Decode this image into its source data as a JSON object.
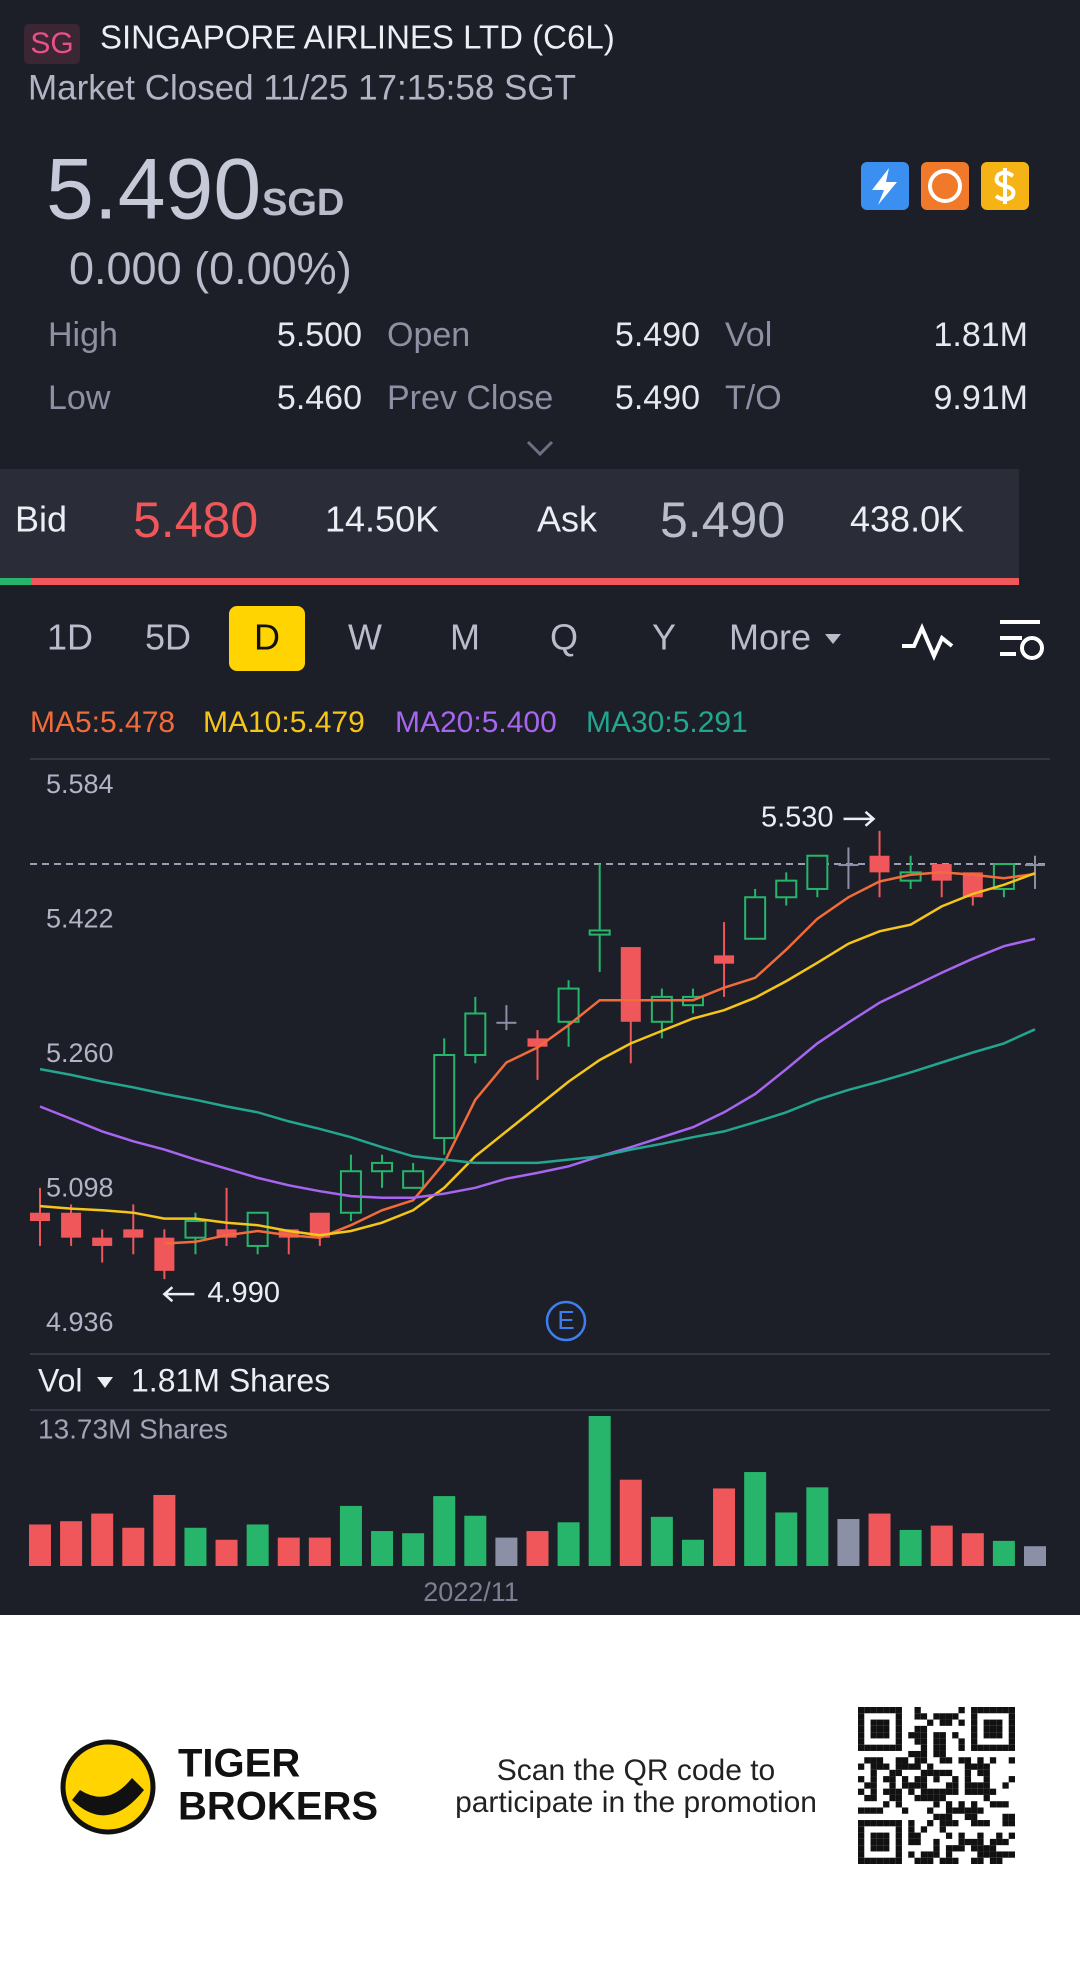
{
  "header": {
    "exchange_badge": "SG",
    "title": "SINGAPORE AIRLINES LTD (C6L)",
    "status": "Market Closed 11/25 17:15:58 SGT"
  },
  "quote": {
    "price": "5.490",
    "currency": "SGD",
    "change": "0.000 (0.00%)"
  },
  "stats": [
    [
      {
        "label": "High",
        "value": "5.500"
      },
      {
        "label": "Open",
        "value": "5.490"
      },
      {
        "label": "Vol",
        "value": "1.81M"
      }
    ],
    [
      {
        "label": "Low",
        "value": "5.460"
      },
      {
        "label": "Prev Close",
        "value": "5.490"
      },
      {
        "label": "T/O",
        "value": "9.91M"
      }
    ]
  ],
  "order_book": {
    "bid_label": "Bid",
    "bid_price": "5.480",
    "bid_size": "14.50K",
    "ask_label": "Ask",
    "ask_price": "5.490",
    "ask_size": "438.0K"
  },
  "periods": [
    "1D",
    "5D",
    "D",
    "W",
    "M",
    "Q",
    "Y",
    "More"
  ],
  "selected_period": 2,
  "chart": {
    "type": "candlestick",
    "ylim": [
      4.936,
      5.584
    ],
    "yticks": [
      5.584,
      5.422,
      {
        "value": 5.26,
        "label": "5.260"
      },
      5.098,
      4.936
    ],
    "colors": {
      "up": "#26b56a",
      "down": "#f0575a",
      "flat": "#8c90a6"
    },
    "candles": {
      "open": [
        5.07,
        5.07,
        5.04,
        5.05,
        5.04,
        5.04,
        5.05,
        5.03,
        5.05,
        5.07,
        5.07,
        5.12,
        5.1,
        5.16,
        5.26,
        5.3,
        5.28,
        5.3,
        5.405,
        5.39,
        5.3,
        5.32,
        5.38,
        5.4,
        5.45,
        5.46,
        5.49,
        5.5,
        5.47,
        5.49,
        5.48,
        5.46,
        5.49
      ],
      "high": [
        5.1,
        5.08,
        5.05,
        5.08,
        5.05,
        5.07,
        5.1,
        5.07,
        5.05,
        5.07,
        5.14,
        5.14,
        5.13,
        5.28,
        5.33,
        5.32,
        5.29,
        5.35,
        5.49,
        5.39,
        5.34,
        5.34,
        5.42,
        5.46,
        5.48,
        5.5,
        5.51,
        5.53,
        5.5,
        5.49,
        5.48,
        5.49,
        5.5
      ],
      "low": [
        5.03,
        5.03,
        5.01,
        5.02,
        4.99,
        5.02,
        5.03,
        5.02,
        5.02,
        5.03,
        5.06,
        5.1,
        5.1,
        5.14,
        5.25,
        5.29,
        5.23,
        5.27,
        5.36,
        5.25,
        5.28,
        5.31,
        5.33,
        5.4,
        5.44,
        5.45,
        5.46,
        5.45,
        5.46,
        5.45,
        5.44,
        5.45,
        5.46
      ],
      "close": [
        5.06,
        5.04,
        5.03,
        5.04,
        5.0,
        5.06,
        5.04,
        5.07,
        5.04,
        5.04,
        5.12,
        5.13,
        5.12,
        5.26,
        5.31,
        5.3,
        5.27,
        5.34,
        5.41,
        5.3,
        5.33,
        5.33,
        5.37,
        5.45,
        5.47,
        5.5,
        5.49,
        5.48,
        5.48,
        5.47,
        5.45,
        5.49,
        5.49
      ]
    },
    "ma_series": [
      {
        "legend": "MA5:5.478",
        "color": "#f26b3a",
        "values": [
          null,
          null,
          null,
          null,
          5.033,
          5.035,
          5.043,
          5.048,
          5.043,
          5.04,
          5.055,
          5.073,
          5.085,
          5.13,
          5.206,
          5.251,
          5.269,
          5.296,
          5.326,
          5.326,
          5.326,
          5.326,
          5.341,
          5.353,
          5.387,
          5.424,
          5.45,
          5.469,
          5.477,
          5.48,
          5.477,
          5.473,
          5.478
        ]
      },
      {
        "legend": "MA10:5.479",
        "color": "#f5c518",
        "values": [
          5.078,
          5.075,
          5.073,
          5.07,
          5.063,
          5.063,
          5.058,
          5.055,
          5.048,
          5.043,
          5.048,
          5.058,
          5.073,
          5.1,
          5.138,
          5.168,
          5.198,
          5.228,
          5.254,
          5.274,
          5.289,
          5.304,
          5.314,
          5.329,
          5.349,
          5.371,
          5.394,
          5.409,
          5.417,
          5.439,
          5.454,
          5.465,
          5.479
        ]
      },
      {
        "legend": "MA20:5.400",
        "color": "#a765f0",
        "values": [
          5.198,
          5.183,
          5.168,
          5.156,
          5.146,
          5.134,
          5.123,
          5.112,
          5.103,
          5.096,
          5.09,
          5.088,
          5.088,
          5.093,
          5.1,
          5.111,
          5.118,
          5.126,
          5.138,
          5.149,
          5.161,
          5.173,
          5.191,
          5.213,
          5.243,
          5.274,
          5.299,
          5.323,
          5.341,
          5.359,
          5.376,
          5.391,
          5.4
        ]
      },
      {
        "legend": "MA30:5.291",
        "color": "#22a690",
        "values": [
          5.243,
          5.236,
          5.228,
          5.221,
          5.213,
          5.206,
          5.198,
          5.191,
          5.18,
          5.171,
          5.161,
          5.149,
          5.138,
          5.134,
          5.13,
          5.13,
          5.13,
          5.134,
          5.138,
          5.146,
          5.153,
          5.161,
          5.168,
          5.179,
          5.191,
          5.206,
          5.218,
          5.228,
          5.239,
          5.251,
          5.263,
          5.274,
          5.291
        ]
      }
    ],
    "last_price": 5.49,
    "high_marker": {
      "label": "5.530",
      "value": 5.53
    },
    "low_marker": {
      "label": "4.990",
      "value": 4.99
    },
    "earnings_marker": "E",
    "x_label": "2022/11",
    "volume": {
      "header": "Vol",
      "current": "1.81M Shares",
      "max_label": "13.73M Shares",
      "ylim": [
        0,
        13.73
      ],
      "values": [
        3.8,
        4.1,
        4.8,
        3.5,
        6.5,
        3.5,
        2.4,
        3.8,
        2.6,
        2.6,
        5.5,
        3.2,
        3.0,
        6.4,
        4.6,
        2.6,
        3.2,
        4.0,
        13.73,
        7.9,
        4.5,
        2.4,
        7.1,
        8.6,
        4.9,
        7.2,
        4.3,
        4.8,
        3.3,
        3.7,
        3.0,
        2.3,
        1.81
      ]
    }
  },
  "footer": {
    "brand_line1": "TIGER",
    "brand_line2": "BROKERS",
    "promo_line1": "Scan the QR code to",
    "promo_line2": "participate in the promotion"
  }
}
